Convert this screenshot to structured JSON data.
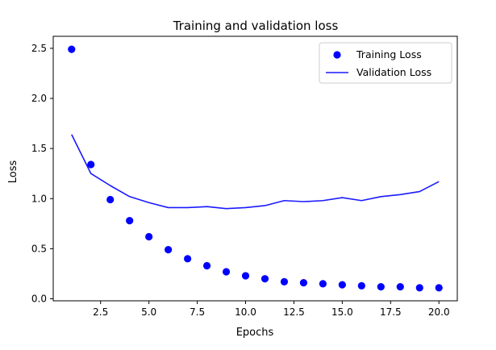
{
  "colors": {
    "series": "#0000ff",
    "line": "#1a1aff",
    "axes": "#000000",
    "legend_border": "#cccccc"
  },
  "chart_data": {
    "type": "line",
    "title": "Training and validation loss",
    "xlabel": "Epochs",
    "ylabel": "Loss",
    "xlim": [
      0.05,
      20.95
    ],
    "ylim": [
      -0.02,
      2.62
    ],
    "xticks": [
      2.5,
      5.0,
      7.5,
      10.0,
      12.5,
      15.0,
      17.5,
      20.0
    ],
    "xtick_labels": [
      "2.5",
      "5.0",
      "7.5",
      "10.0",
      "12.5",
      "15.0",
      "17.5",
      "20.0"
    ],
    "yticks": [
      0.0,
      0.5,
      1.0,
      1.5,
      2.0,
      2.5
    ],
    "ytick_labels": [
      "0.0",
      "0.5",
      "1.0",
      "1.5",
      "2.0",
      "2.5"
    ],
    "grid": false,
    "legend_position": "top-right",
    "x": [
      1,
      2,
      3,
      4,
      5,
      6,
      7,
      8,
      9,
      10,
      11,
      12,
      13,
      14,
      15,
      16,
      17,
      18,
      19,
      20
    ],
    "series": [
      {
        "name": "Training Loss",
        "style": "points",
        "values": [
          2.49,
          1.34,
          0.99,
          0.78,
          0.62,
          0.49,
          0.4,
          0.33,
          0.27,
          0.23,
          0.2,
          0.17,
          0.16,
          0.15,
          0.14,
          0.13,
          0.12,
          0.12,
          0.11,
          0.11
        ]
      },
      {
        "name": "Validation Loss",
        "style": "line",
        "values": [
          1.64,
          1.25,
          1.13,
          1.02,
          0.96,
          0.91,
          0.91,
          0.92,
          0.9,
          0.91,
          0.93,
          0.98,
          0.97,
          0.98,
          1.01,
          0.98,
          1.02,
          1.04,
          1.07,
          1.17
        ]
      }
    ]
  }
}
